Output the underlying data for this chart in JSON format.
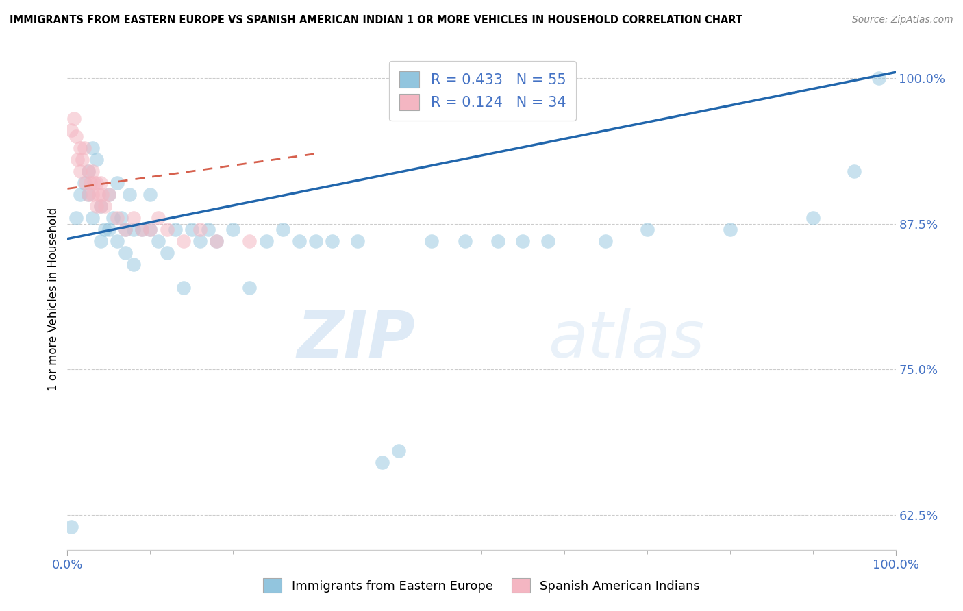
{
  "title": "IMMIGRANTS FROM EASTERN EUROPE VS SPANISH AMERICAN INDIAN 1 OR MORE VEHICLES IN HOUSEHOLD CORRELATION CHART",
  "source": "Source: ZipAtlas.com",
  "ylabel": "1 or more Vehicles in Household",
  "legend1_label": "Immigrants from Eastern Europe",
  "legend2_label": "Spanish American Indians",
  "R1": 0.433,
  "N1": 55,
  "R2": 0.124,
  "N2": 34,
  "blue_color": "#92c5de",
  "pink_color": "#f4b6c2",
  "blue_line_color": "#2166ac",
  "pink_line_color": "#d6604d",
  "watermark_zip": "ZIP",
  "watermark_atlas": "atlas",
  "x_range": [
    0.0,
    1.0
  ],
  "y_range": [
    0.595,
    1.025
  ],
  "y_ticks": [
    0.625,
    0.75,
    0.875,
    1.0
  ],
  "y_tick_labels": [
    "62.5%",
    "75.0%",
    "87.5%",
    "100.0%"
  ],
  "x_ticks": [
    0.0,
    1.0
  ],
  "x_tick_labels": [
    "0.0%",
    "100.0%"
  ],
  "blue_scatter_x": [
    0.005,
    0.01,
    0.015,
    0.02,
    0.025,
    0.025,
    0.03,
    0.03,
    0.035,
    0.04,
    0.04,
    0.045,
    0.05,
    0.05,
    0.055,
    0.06,
    0.06,
    0.065,
    0.07,
    0.07,
    0.075,
    0.08,
    0.08,
    0.09,
    0.1,
    0.1,
    0.11,
    0.12,
    0.13,
    0.14,
    0.15,
    0.16,
    0.17,
    0.18,
    0.2,
    0.22,
    0.24,
    0.26,
    0.28,
    0.3,
    0.32,
    0.35,
    0.38,
    0.4,
    0.44,
    0.48,
    0.52,
    0.55,
    0.58,
    0.65,
    0.7,
    0.8,
    0.9,
    0.95,
    0.98
  ],
  "blue_scatter_y": [
    0.615,
    0.88,
    0.9,
    0.91,
    0.92,
    0.9,
    0.94,
    0.88,
    0.93,
    0.89,
    0.86,
    0.87,
    0.9,
    0.87,
    0.88,
    0.91,
    0.86,
    0.88,
    0.87,
    0.85,
    0.9,
    0.87,
    0.84,
    0.87,
    0.9,
    0.87,
    0.86,
    0.85,
    0.87,
    0.82,
    0.87,
    0.86,
    0.87,
    0.86,
    0.87,
    0.82,
    0.86,
    0.87,
    0.86,
    0.86,
    0.86,
    0.86,
    0.67,
    0.68,
    0.86,
    0.86,
    0.86,
    0.86,
    0.86,
    0.86,
    0.87,
    0.87,
    0.88,
    0.92,
    1.0
  ],
  "pink_scatter_x": [
    0.005,
    0.008,
    0.01,
    0.012,
    0.015,
    0.015,
    0.018,
    0.02,
    0.022,
    0.025,
    0.025,
    0.028,
    0.03,
    0.03,
    0.032,
    0.035,
    0.035,
    0.038,
    0.04,
    0.04,
    0.042,
    0.045,
    0.05,
    0.06,
    0.07,
    0.08,
    0.09,
    0.1,
    0.11,
    0.12,
    0.14,
    0.16,
    0.18,
    0.22
  ],
  "pink_scatter_y": [
    0.955,
    0.965,
    0.95,
    0.93,
    0.94,
    0.92,
    0.93,
    0.94,
    0.91,
    0.92,
    0.9,
    0.91,
    0.92,
    0.9,
    0.91,
    0.91,
    0.89,
    0.9,
    0.91,
    0.89,
    0.9,
    0.89,
    0.9,
    0.88,
    0.87,
    0.88,
    0.87,
    0.87,
    0.88,
    0.87,
    0.86,
    0.87,
    0.86,
    0.86
  ],
  "blue_trend_x0": 0.0,
  "blue_trend_y0": 0.862,
  "blue_trend_x1": 1.0,
  "blue_trend_y1": 1.005,
  "pink_trend_x0": 0.0,
  "pink_trend_y0": 0.905,
  "pink_trend_x1": 0.3,
  "pink_trend_y1": 0.935
}
